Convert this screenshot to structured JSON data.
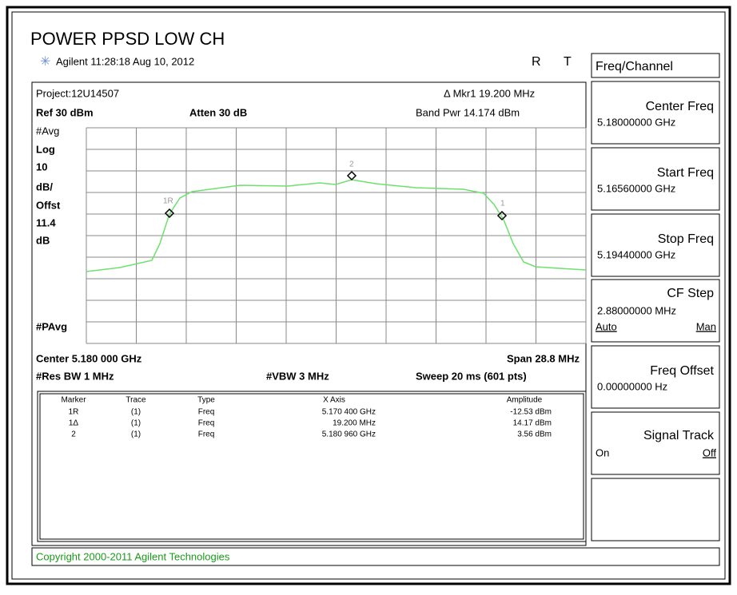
{
  "title": "POWER PPSD LOW CH",
  "status": {
    "timestamp": "Agilent 11:28:18  Aug 10, 2012",
    "flags": [
      "R",
      "T"
    ]
  },
  "screen": {
    "project": "Project:12U14507",
    "marker_readout": "Δ Mkr1  19.200 MHz",
    "ref": "Ref 30 dBm",
    "atten": "Atten 30 dB",
    "band_power": "Band Pwr  14.174 dBm",
    "left_labels": [
      "#Avg",
      "Log",
      "10",
      "dB/",
      "Offst",
      "11.4",
      "dB",
      "#PAvg"
    ],
    "trace_marker_labels": [
      "1R",
      "2",
      "1"
    ],
    "center": "Center 5.180 000 GHz",
    "span": "Span 28.8 MHz",
    "res_bw": "#Res BW 1 MHz",
    "vbw": "#VBW 3 MHz",
    "sweep": "Sweep 20 ms (601 pts)"
  },
  "table": {
    "headers": [
      "Marker",
      "Trace",
      "Type",
      "X Axis",
      "Amplitude"
    ],
    "rows": [
      [
        "1R",
        "(1)",
        "Freq",
        "5.170 400 GHz",
        "-12.53 dBm"
      ],
      [
        "1Δ",
        "(1)",
        "Freq",
        "19.200 MHz",
        "14.17 dBm"
      ],
      [
        "2",
        "(1)",
        "Freq",
        "5.180 960 GHz",
        "3.56 dBm"
      ]
    ]
  },
  "copyright": "Copyright 2000-2011 Agilent Technologies",
  "menu": {
    "title": "Freq/Channel",
    "buttons": [
      {
        "label": "Center Freq",
        "value": "5.18000000 GHz"
      },
      {
        "label": "Start Freq",
        "value": "5.16560000 GHz"
      },
      {
        "label": "Stop Freq",
        "value": "5.19440000 GHz"
      },
      {
        "label": "CF Step",
        "value": "2.88000000 MHz",
        "options": [
          "Auto",
          "Man"
        ]
      },
      {
        "label": "Freq Offset",
        "value": "0.00000000  Hz"
      },
      {
        "label": "Signal Track",
        "options": [
          "On",
          "Off"
        ]
      }
    ]
  }
}
